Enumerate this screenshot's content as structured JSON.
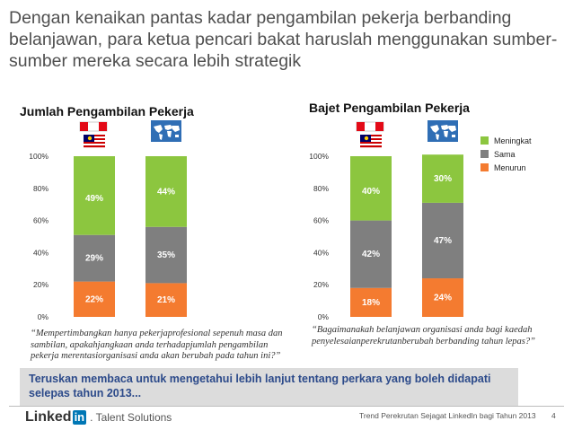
{
  "headline": "Dengan kenaikan pantas kadar pengambilan pekerja berbanding belanjawan, para ketua pencari bakat haruslah menggunakan sumber-sumber mereka secara lebih strategik",
  "colors": {
    "meningkat": "#8cc63f",
    "sama": "#7f7f7f",
    "menurun": "#f47b30",
    "banner_text": "#2c4a8a",
    "linkedin_blue": "#0077b5"
  },
  "legend": [
    {
      "label": "Meningkat",
      "color": "#8cc63f"
    },
    {
      "label": "Sama",
      "color": "#7f7f7f"
    },
    {
      "label": "Menurun",
      "color": "#f47b30"
    }
  ],
  "chart_data": [
    {
      "type": "bar",
      "stacked": true,
      "title": "Jumlah Pengambilan Pekerja",
      "categories": [
        "malaysia-flag",
        "world-map"
      ],
      "series": [
        {
          "name": "Menurun",
          "values": [
            22,
            21
          ]
        },
        {
          "name": "Sama",
          "values": [
            29,
            35
          ]
        },
        {
          "name": "Meningkat",
          "values": [
            49,
            44
          ]
        }
      ],
      "ylim": [
        0,
        100
      ],
      "yticks": [
        "0%",
        "20%",
        "40%",
        "60%",
        "80%",
        "100%"
      ],
      "grid": false
    },
    {
      "type": "bar",
      "stacked": true,
      "title": "Bajet Pengambilan Pekerja",
      "categories": [
        "malaysia-flag",
        "world-map"
      ],
      "series": [
        {
          "name": "Menurun",
          "values": [
            18,
            24
          ]
        },
        {
          "name": "Sama",
          "values": [
            42,
            47
          ]
        },
        {
          "name": "Meningkat",
          "values": [
            40,
            30
          ]
        }
      ],
      "ylim": [
        0,
        100
      ],
      "yticks": [
        "0%",
        "20%",
        "40%",
        "60%",
        "80%",
        "100%"
      ],
      "grid": false,
      "legend_position": "right"
    }
  ],
  "quotes": {
    "left": "“Mempertimbangkan hanya pekerjaprofesional sepenuh masa dan sambilan, apakahjangkaan anda terhadapjumlah pengambilan pekerja merentasiorganisasi anda akan berubah pada tahun ini?”",
    "right": "“Bagaimanakah belanjawan organisasi anda bagi kaedah penyelesaianperekrutanberubah berbanding tahun lepas?”"
  },
  "banner": "Teruskan membaca untuk mengetahui lebih lanjut tentang perkara yang boleh didapati selepas tahun 2013...",
  "footer": {
    "logo_word": "Linked",
    "logo_box": "in",
    "logo_product": ". Talent Solutions",
    "text": "Trend Perekrutan Sejagat LinkedIn bagi Tahun 2013",
    "page": "4"
  }
}
